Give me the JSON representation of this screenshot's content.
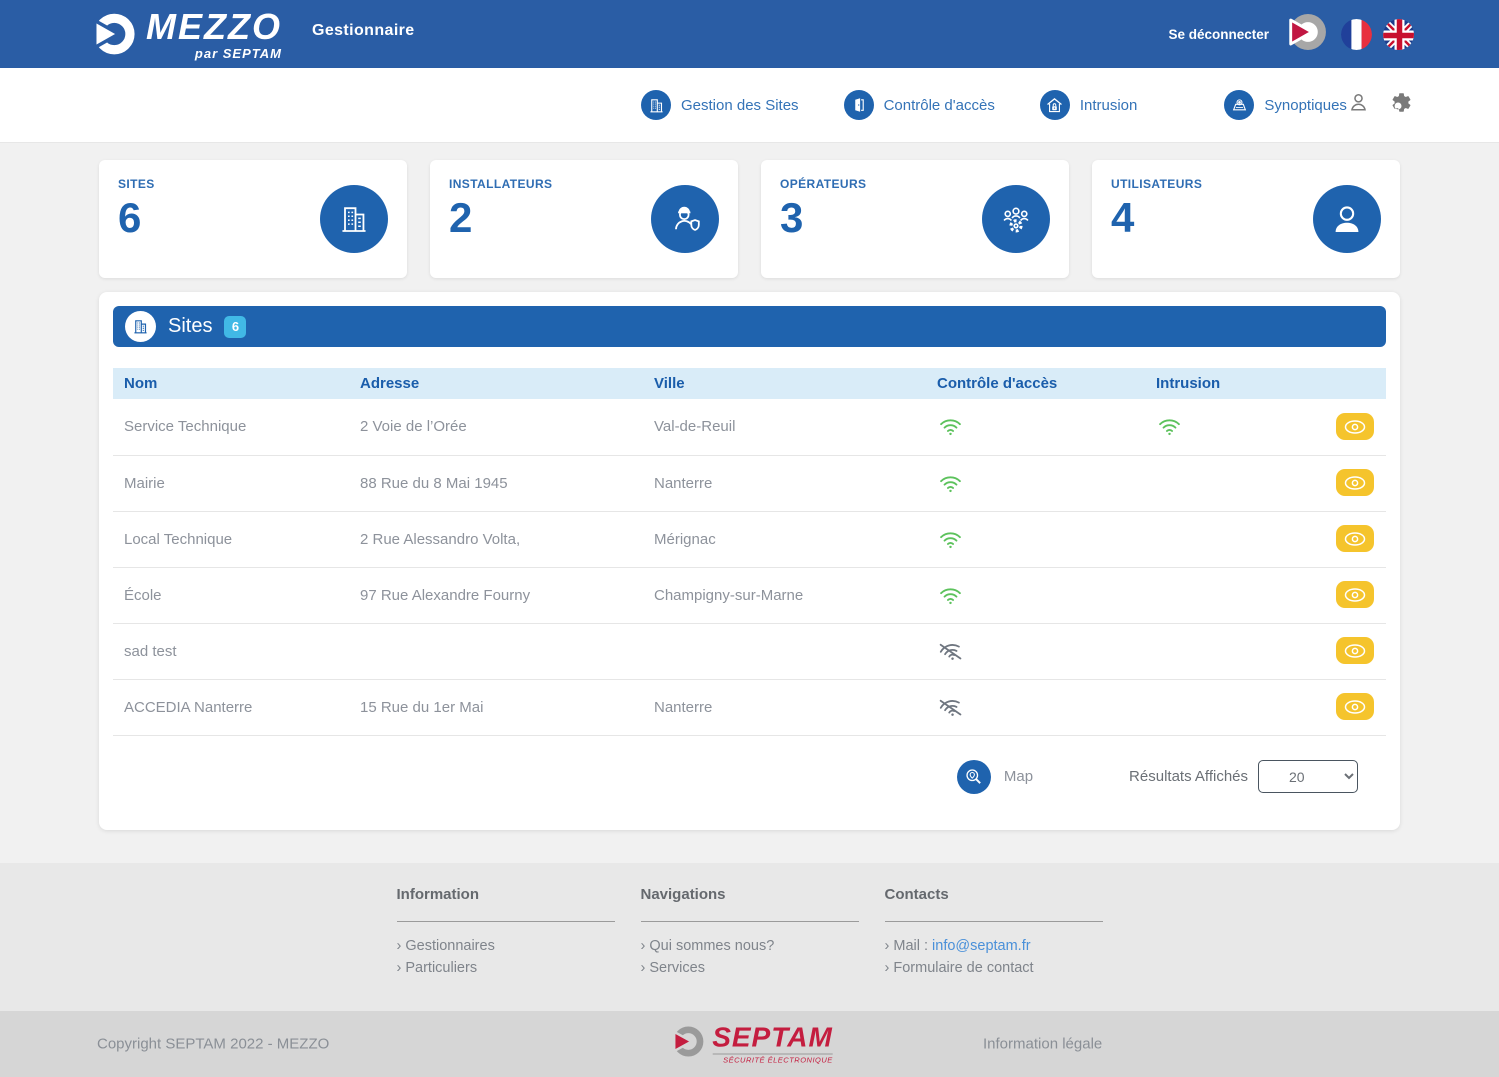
{
  "header": {
    "brand_name": "MEZZO",
    "brand_sub": "par SEPTAM",
    "app_title": "Gestionnaire",
    "logout_label": "Se déconnecter",
    "icons": [
      "mezzo-mark-icon",
      "french-flag-icon",
      "uk-flag-icon"
    ],
    "colors": {
      "header_blue": "#2a5da5",
      "primary_blue": "#1f63ae"
    }
  },
  "nav": {
    "items": [
      {
        "label": "Gestion des Sites",
        "icon": "building-icon"
      },
      {
        "label": "Contrôle d'accès",
        "icon": "door-icon"
      },
      {
        "label": "Intrusion",
        "icon": "house-lock-icon"
      },
      {
        "label": "Synoptiques",
        "icon": "map-icon"
      }
    ],
    "right_icons": [
      "user-icon",
      "gear-icon"
    ]
  },
  "stats": [
    {
      "label": "SITES",
      "value": "6",
      "icon": "building-icon"
    },
    {
      "label": "INSTALLATEURS",
      "value": "2",
      "icon": "worker-icon"
    },
    {
      "label": "OPÉRATEURS",
      "value": "3",
      "icon": "operators-gears-icon"
    },
    {
      "label": "UTILISATEURS",
      "value": "4",
      "icon": "person-icon"
    }
  ],
  "sites_panel": {
    "title": "Sites",
    "count_badge": "6",
    "columns": [
      "Nom",
      "Adresse",
      "Ville",
      "Contrôle d'accès",
      "Intrusion"
    ],
    "rows": [
      {
        "nom": "Service Technique",
        "adresse": "2 Voie de l’Orée",
        "ville": "Val-de-Reuil",
        "controle_acces": "wifi-on",
        "intrusion": "wifi-on"
      },
      {
        "nom": "Mairie",
        "adresse": "88 Rue du 8 Mai 1945",
        "ville": "Nanterre",
        "controle_acces": "wifi-on",
        "intrusion": ""
      },
      {
        "nom": "Local Technique",
        "adresse": "2 Rue Alessandro Volta,",
        "ville": "Mérignac",
        "controle_acces": "wifi-on",
        "intrusion": ""
      },
      {
        "nom": "École",
        "adresse": "97 Rue Alexandre Fourny",
        "ville": "Champigny-sur-Marne",
        "controle_acces": "wifi-on",
        "intrusion": ""
      },
      {
        "nom": "sad test",
        "adresse": "",
        "ville": "",
        "controle_acces": "wifi-off",
        "intrusion": ""
      },
      {
        "nom": "ACCEDIA Nanterre",
        "adresse": "15 Rue du 1er Mai",
        "ville": "Nanterre",
        "controle_acces": "wifi-off",
        "intrusion": ""
      }
    ],
    "status_colors": {
      "wifi_on": "#5cc25c",
      "wifi_off": "#6f7680",
      "eye_button": "#f5c42c"
    },
    "map_label": "Map",
    "results_label": "Résultats Affichés",
    "results_value": "20"
  },
  "footer": {
    "columns": [
      {
        "title": "Information",
        "links": [
          "Gestionnaires",
          "Particuliers"
        ]
      },
      {
        "title": "Navigations",
        "links": [
          "Qui sommes nous?",
          "Services"
        ]
      },
      {
        "title": "Contacts",
        "mail_prefix": "Mail : ",
        "mail_link": "info@septam.fr",
        "links": [
          "Formulaire de contact"
        ]
      }
    ]
  },
  "bottombar": {
    "copyright": "Copyright SEPTAM 2022 - MEZZO",
    "brand_name": "SEPTAM",
    "brand_sub": "SÉCURITÉ ÉLECTRONIQUE",
    "legal": "Information légale"
  }
}
